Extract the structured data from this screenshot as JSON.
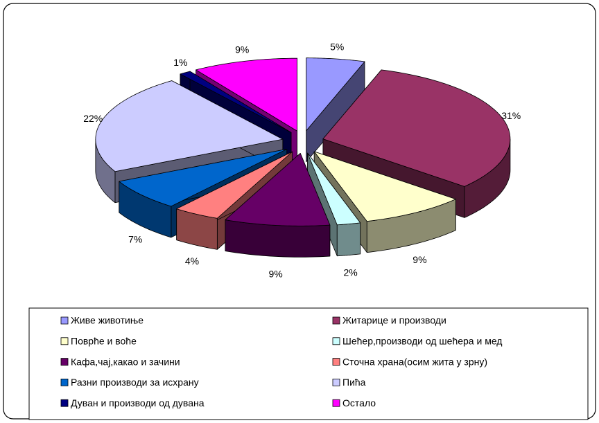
{
  "chart_data": {
    "type": "pie3d",
    "categories": [
      "Живе животиње",
      "Житарице и производи",
      "Поврће и воће",
      "Шећер,производи од шећера и мед",
      "Кафа,чај,какао и зачини",
      "Сточна храна(осим жита у зрну)",
      "Разни производи за исхрану",
      "Пића",
      "Дуван и производи од дувана",
      "Остало"
    ],
    "values": [
      5,
      31,
      9,
      2,
      9,
      4,
      7,
      22,
      1,
      9
    ],
    "value_labels": [
      "5%",
      "31%",
      "9%",
      "2%",
      "9%",
      "4%",
      "7%",
      "22%",
      "1%",
      "9%"
    ],
    "colors": [
      "#9999ff",
      "#993366",
      "#ffffcc",
      "#ccffff",
      "#660066",
      "#ff8080",
      "#0066cc",
      "#ccccff",
      "#000080",
      "#ff00ff"
    ],
    "legend": "bottom"
  }
}
